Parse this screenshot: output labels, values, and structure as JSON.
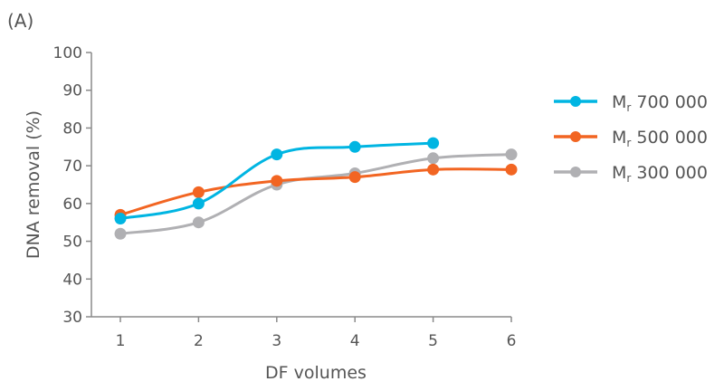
{
  "panel_label": "(A)",
  "chart_data": {
    "type": "line",
    "title": "",
    "xlabel": "DF volumes",
    "ylabel": "DNA removal (%)",
    "xlim": [
      1,
      6
    ],
    "ylim": [
      30,
      100
    ],
    "x_ticks": [
      "1",
      "2",
      "3",
      "4",
      "5",
      "6"
    ],
    "y_ticks": [
      "30",
      "40",
      "50",
      "60",
      "70",
      "80",
      "90",
      "100"
    ],
    "grid": false,
    "legend_position": "right",
    "series": [
      {
        "name_main": "M",
        "name_sub": "r",
        "name_rest": " 700 000",
        "color": "#00b5e2",
        "x": [
          1,
          2,
          3,
          4,
          5
        ],
        "values": [
          56,
          60,
          73,
          75,
          76
        ]
      },
      {
        "name_main": "M",
        "name_sub": "r",
        "name_rest": " 500 000",
        "color": "#f26522",
        "x": [
          1,
          2,
          3,
          4,
          5,
          6
        ],
        "values": [
          57,
          63,
          66,
          67,
          69,
          69
        ]
      },
      {
        "name_main": "M",
        "name_sub": "r",
        "name_rest": " 300 000",
        "color": "#b0b0b3",
        "x": [
          1,
          2,
          3,
          4,
          5,
          6
        ],
        "values": [
          52,
          55,
          65,
          68,
          72,
          73
        ]
      }
    ]
  }
}
